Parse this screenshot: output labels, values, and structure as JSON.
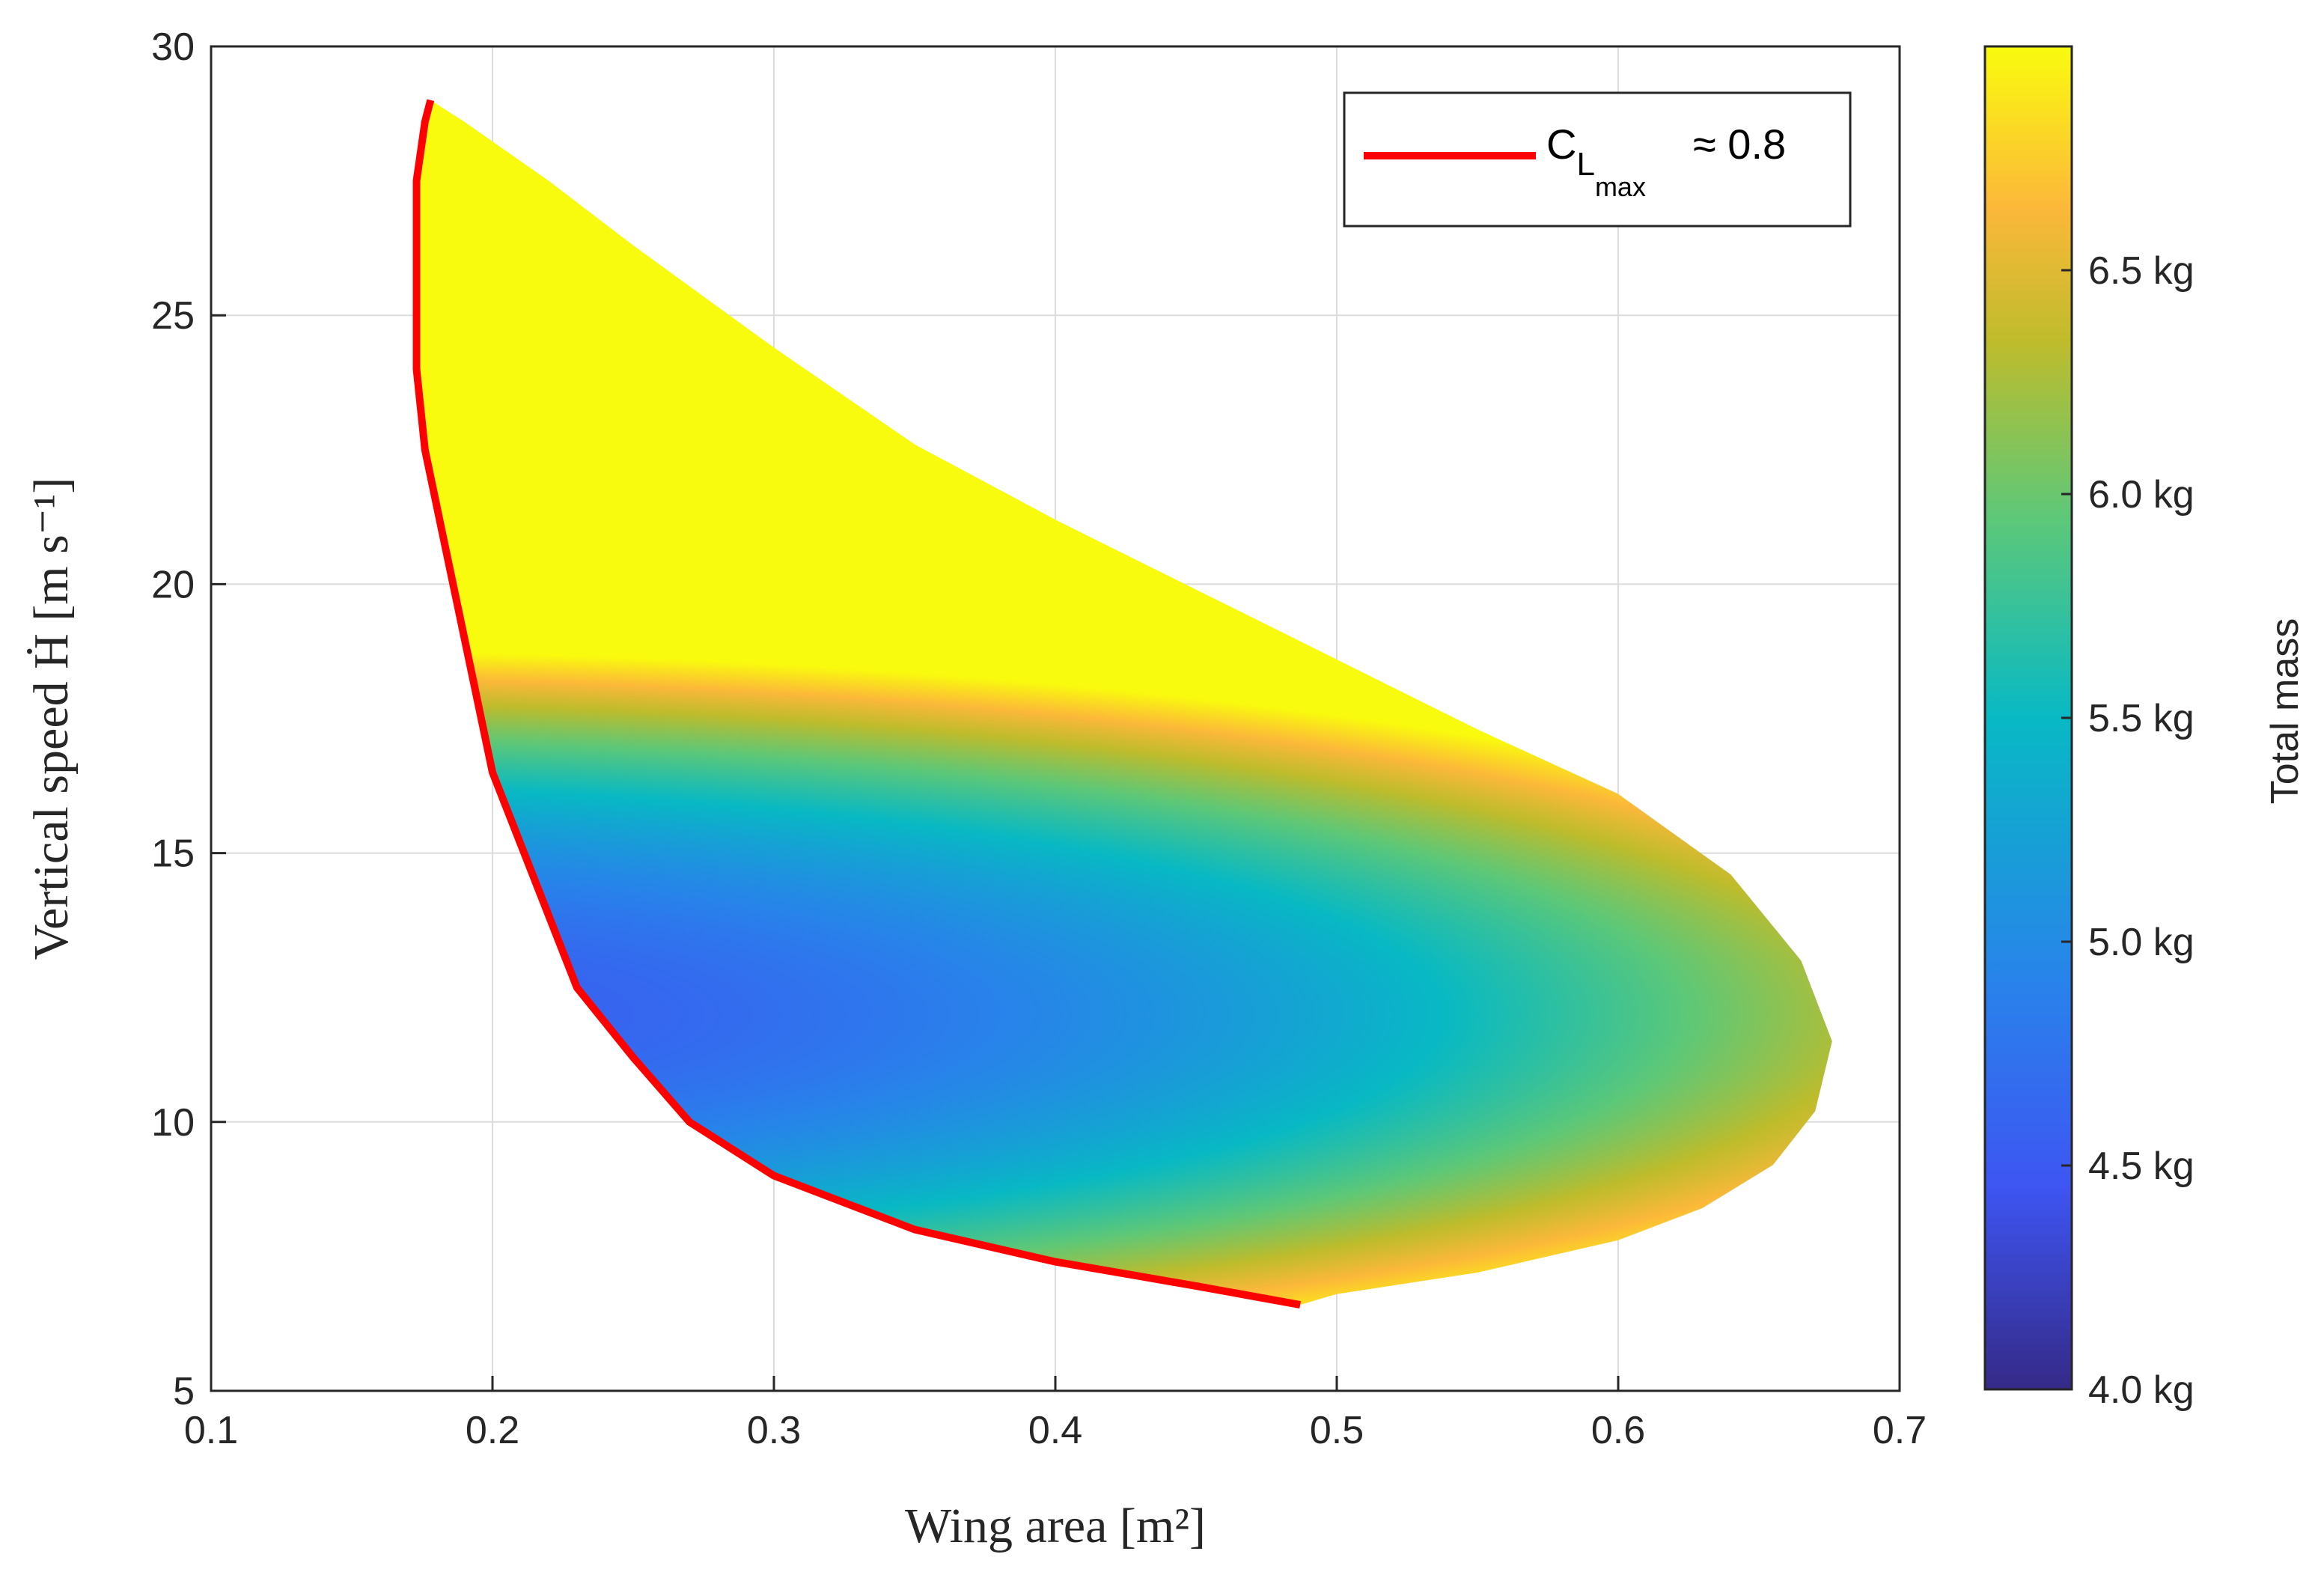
{
  "chart_data": {
    "type": "heatmap",
    "xlabel": "Wing area [m²]",
    "ylabel": "Vertical speed Ḣ [m s⁻¹]",
    "xlim": [
      0.1,
      0.7
    ],
    "ylim": [
      5,
      30
    ],
    "xticks": [
      "0.1",
      "0.2",
      "0.3",
      "0.4",
      "0.5",
      "0.6",
      "0.7"
    ],
    "yticks": [
      "5",
      "10",
      "15",
      "20",
      "25",
      "30"
    ],
    "grid": true,
    "colorbar": {
      "title": "Total mass",
      "range": [
        4.0,
        7.0
      ],
      "ticks": [
        "4.0 kg",
        "4.5 kg",
        "5.0 kg",
        "5.5 kg",
        "6.0 kg",
        "6.5 kg"
      ],
      "tick_values": [
        4.0,
        4.5,
        5.0,
        5.5,
        6.0,
        6.5
      ],
      "colormap": "parula"
    },
    "legend": {
      "placement": "top-right",
      "label_main": "C",
      "label_sub": "L",
      "label_subsub": "max",
      "label_suffix": "≈ 0.8",
      "color": "#ff0000"
    },
    "feasible_region": {
      "upper_boundary": [
        [
          0.178,
          29.0
        ],
        [
          0.19,
          28.6
        ],
        [
          0.22,
          27.5
        ],
        [
          0.25,
          26.3
        ],
        [
          0.3,
          24.4
        ],
        [
          0.35,
          22.6
        ],
        [
          0.4,
          21.2
        ],
        [
          0.45,
          19.9
        ],
        [
          0.5,
          18.6
        ],
        [
          0.55,
          17.3
        ],
        [
          0.6,
          16.1
        ],
        [
          0.64,
          14.6
        ],
        [
          0.665,
          13.0
        ],
        [
          0.676,
          11.5
        ]
      ],
      "lower_boundary": [
        [
          0.676,
          11.5
        ],
        [
          0.67,
          10.2
        ],
        [
          0.655,
          9.2
        ],
        [
          0.63,
          8.4
        ],
        [
          0.6,
          7.8
        ],
        [
          0.55,
          7.2
        ],
        [
          0.5,
          6.8
        ],
        [
          0.487,
          6.6
        ]
      ],
      "clmax_curve": [
        [
          0.487,
          6.6
        ],
        [
          0.45,
          6.95
        ],
        [
          0.4,
          7.4
        ],
        [
          0.35,
          8.0
        ],
        [
          0.3,
          9.0
        ],
        [
          0.27,
          10.0
        ],
        [
          0.25,
          11.2
        ],
        [
          0.23,
          12.5
        ],
        [
          0.215,
          14.5
        ],
        [
          0.2,
          16.5
        ],
        [
          0.19,
          19.0
        ],
        [
          0.182,
          21.0
        ],
        [
          0.176,
          22.5
        ],
        [
          0.173,
          24.0
        ],
        [
          0.173,
          27.5
        ],
        [
          0.176,
          28.6
        ],
        [
          0.178,
          29.0
        ]
      ]
    },
    "mass_field": {
      "a": 4.6,
      "b": 5.6,
      "c": 0.009,
      "d": 0.23,
      "y0": 12.0
    }
  }
}
